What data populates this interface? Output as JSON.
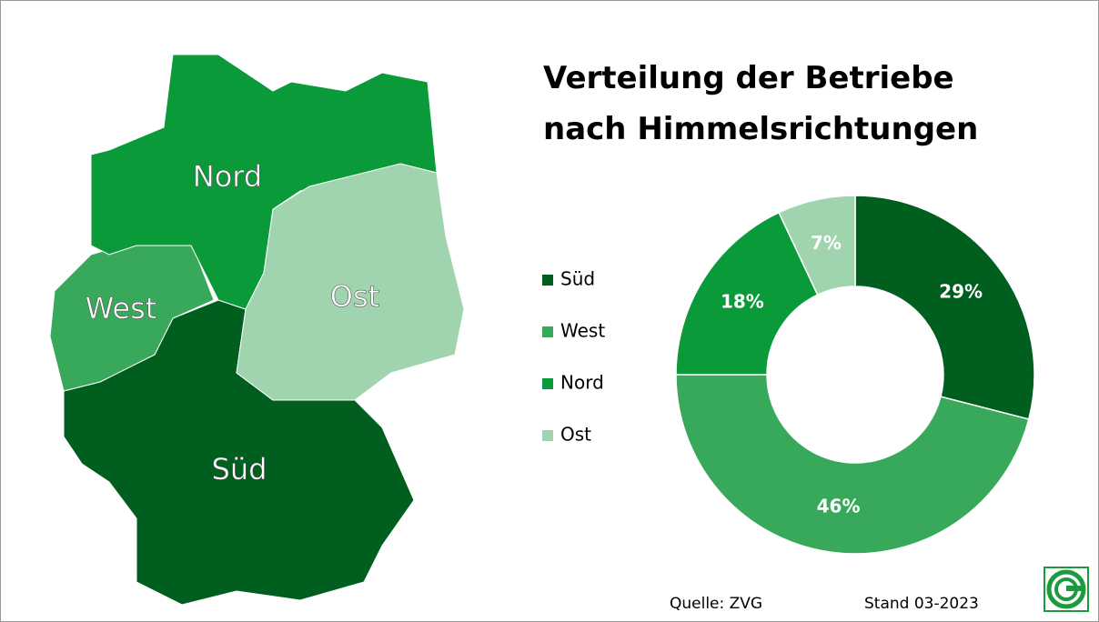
{
  "chart_data": {
    "type": "donut",
    "title": "Verteilung der Betriebe nach Himmelsrichtungen",
    "categories": [
      "Süd",
      "West",
      "Nord",
      "Ost"
    ],
    "values": [
      29,
      46,
      18,
      7
    ],
    "value_labels": [
      "29%",
      "46%",
      "18%",
      "7%"
    ],
    "colors": [
      "#005e1f",
      "#38a95a",
      "#0b9a3a",
      "#9fd4ae"
    ],
    "source": "Quelle: ZVG",
    "date": "Stand 03-2023"
  }
}
